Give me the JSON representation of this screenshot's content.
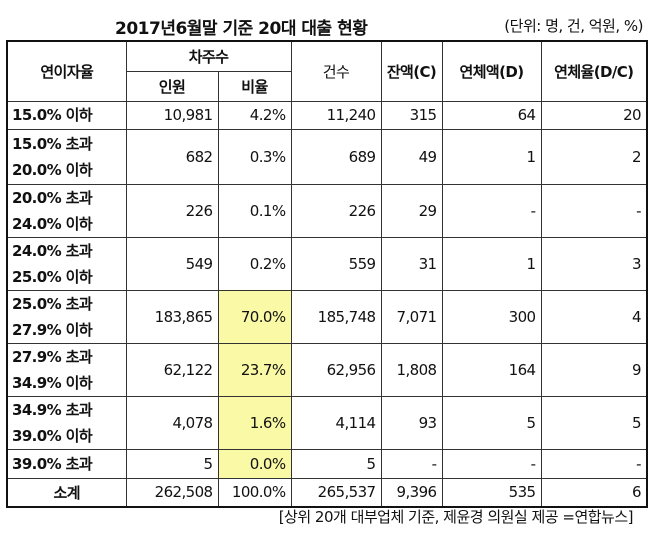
{
  "title": "2017년6월말 기준 20대 대출 현황",
  "unit": "(단위: 명, 건, 억원, %)",
  "header": {
    "rate": "연이자율",
    "borrowers": "차주수",
    "persons": "인원",
    "ratio": "비율",
    "count": "건수",
    "balance": "잔액(C)",
    "overdue": "연체액(D)",
    "overdue_rate": "연체율(D/C)"
  },
  "rows": [
    {
      "l1": "15.0% 이하",
      "l2": "",
      "persons": "10,981",
      "ratio": "4.2%",
      "count": "11,240",
      "balance": "315",
      "overdue": "64",
      "overdue_rate": "20",
      "hl": false
    },
    {
      "l1": "15.0% 초과",
      "l2": "20.0% 이하",
      "persons": "682",
      "ratio": "0.3%",
      "count": "689",
      "balance": "49",
      "overdue": "1",
      "overdue_rate": "2",
      "hl": false
    },
    {
      "l1": "20.0% 초과",
      "l2": "24.0% 이하",
      "persons": "226",
      "ratio": "0.1%",
      "count": "226",
      "balance": "29",
      "overdue": "-",
      "overdue_rate": "-",
      "hl": false
    },
    {
      "l1": "24.0% 초과",
      "l2": "25.0% 이하",
      "persons": "549",
      "ratio": "0.2%",
      "count": "559",
      "balance": "31",
      "overdue": "1",
      "overdue_rate": "3",
      "hl": false
    },
    {
      "l1": "25.0% 초과",
      "l2": "27.9% 이하",
      "persons": "183,865",
      "ratio": "70.0%",
      "count": "185,748",
      "balance": "7,071",
      "overdue": "300",
      "overdue_rate": "4",
      "hl": true
    },
    {
      "l1": "27.9% 초과",
      "l2": "34.9% 이하",
      "persons": "62,122",
      "ratio": "23.7%",
      "count": "62,956",
      "balance": "1,808",
      "overdue": "164",
      "overdue_rate": "9",
      "hl": true
    },
    {
      "l1": "34.9% 초과",
      "l2": "39.0% 이하",
      "persons": "4,078",
      "ratio": "1.6%",
      "count": "4,114",
      "balance": "93",
      "overdue": "5",
      "overdue_rate": "5",
      "hl": true
    },
    {
      "l1": "39.0% 초과",
      "l2": "",
      "persons": "5",
      "ratio": "0.0%",
      "count": "5",
      "balance": "-",
      "overdue": "-",
      "overdue_rate": "-",
      "hl": true
    }
  ],
  "total": {
    "label": "소계",
    "persons": "262,508",
    "ratio": "100.0%",
    "count": "265,537",
    "balance": "9,396",
    "overdue": "535",
    "overdue_rate": "6"
  },
  "footer": "[상위 20개 대부업체 기준, 제윤경 의원실 제공 =연합뉴스]",
  "colors": {
    "highlight": "#f9f9a6"
  }
}
